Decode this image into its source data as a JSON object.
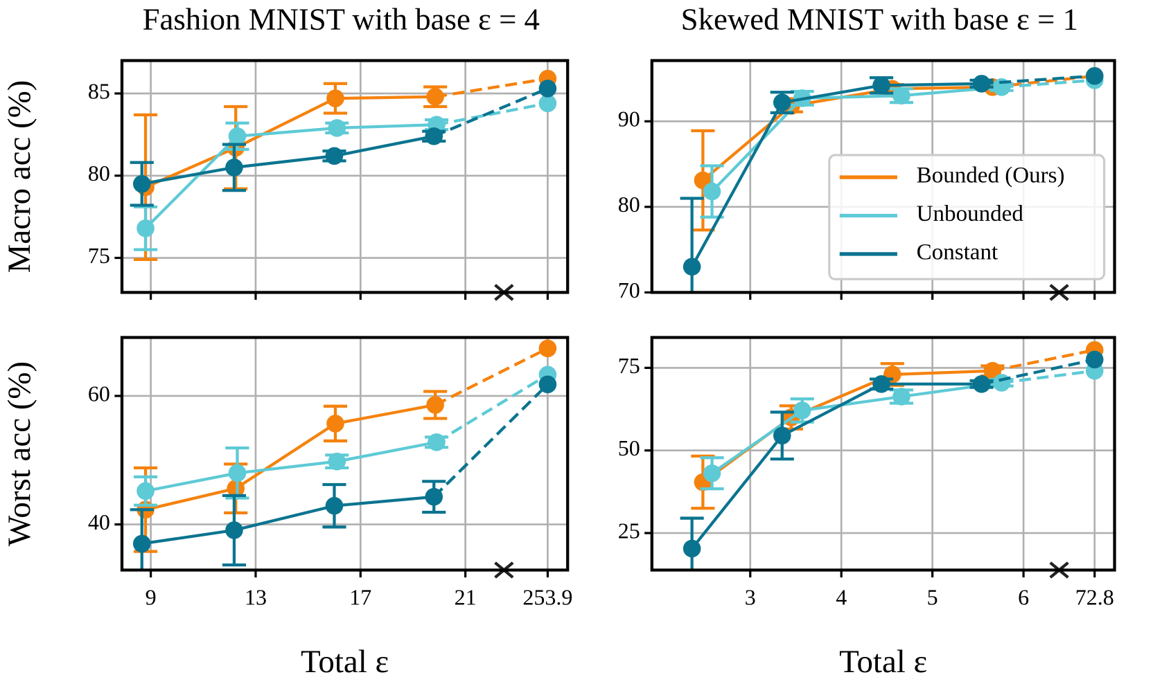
{
  "chart_data": [
    {
      "type": "line",
      "title": "Fashion MNIST with base ε = 4",
      "ylabel": "Macro acc (%)",
      "xlim": [
        7.9,
        24.9
      ],
      "xticks": [
        9,
        13,
        17,
        21,
        253.9
      ],
      "xtick_labels": false,
      "x_break": 22.5,
      "ylim": [
        72.9,
        87.0
      ],
      "yticks": [
        75,
        80,
        85
      ],
      "grid": true,
      "series": [
        {
          "color": "#f5820d",
          "x": [
            8.8,
            12.24,
            16.04,
            19.85,
            253.9
          ],
          "values": [
            79.3,
            81.7,
            84.7,
            84.8,
            85.9
          ],
          "errors": [
            4.4,
            2.5,
            0.9,
            0.6,
            null
          ]
        },
        {
          "color": "#5ecad6",
          "x": [
            8.8,
            12.3,
            16.1,
            19.9,
            253.9
          ],
          "values": [
            76.8,
            82.4,
            82.9,
            83.1,
            84.4
          ],
          "errors": [
            1.3,
            0.8,
            0.3,
            0.3,
            null
          ]
        },
        {
          "color": "#0a7490",
          "x": [
            8.66,
            12.18,
            16.0,
            19.8,
            253.9
          ],
          "values": [
            79.5,
            80.5,
            81.2,
            82.4,
            85.3
          ],
          "errors": [
            1.3,
            1.4,
            0.3,
            0.3,
            null
          ]
        }
      ]
    },
    {
      "type": "line",
      "title": "Skewed MNIST with base ε = 1",
      "xlim": [
        1.92,
        7.0
      ],
      "xticks": [
        3,
        4,
        5,
        6,
        72.8
      ],
      "xtick_labels": false,
      "x_break": 6.4,
      "ylim": [
        70,
        97.1
      ],
      "yticks": [
        70,
        80,
        90
      ],
      "grid": true,
      "legend": "center right",
      "series": [
        {
          "name": "Bounded (Ours)",
          "color": "#f5820d",
          "x": [
            2.48,
            3.45,
            4.56,
            5.66,
            72.8
          ],
          "values": [
            83.1,
            91.8,
            93.8,
            94.0,
            95.3
          ],
          "errors": [
            5.8,
            0.7,
            0.5,
            0.4,
            null
          ]
        },
        {
          "name": "Unbounded",
          "color": "#5ecad6",
          "x": [
            2.58,
            3.57,
            4.66,
            5.76,
            72.8
          ],
          "values": [
            81.8,
            92.7,
            93.0,
            94.0,
            94.8
          ],
          "errors": [
            3.0,
            0.8,
            0.8,
            0.4,
            null
          ]
        },
        {
          "name": "Constant",
          "color": "#0a7490",
          "x": [
            2.36,
            3.35,
            4.44,
            5.54,
            72.8
          ],
          "values": [
            73.0,
            92.2,
            94.2,
            94.4,
            95.3
          ],
          "errors": [
            8.0,
            1.2,
            0.9,
            0.4,
            null
          ]
        }
      ]
    },
    {
      "type": "line",
      "ylabel": "Worst acc (%)",
      "xlabel": "Total ε",
      "xlim": [
        7.9,
        24.9
      ],
      "xticks": [
        9,
        13,
        17,
        21,
        253.9
      ],
      "xtick_labels": true,
      "x_break": 22.5,
      "ylim": [
        32.9,
        69.1
      ],
      "yticks": [
        40,
        60
      ],
      "grid": true,
      "series": [
        {
          "color": "#f5820d",
          "x": [
            8.8,
            12.24,
            16.04,
            19.85,
            253.9
          ],
          "values": [
            42.3,
            45.6,
            55.7,
            58.6,
            67.4
          ],
          "errors": [
            6.5,
            3.8,
            2.7,
            2.1,
            null
          ]
        },
        {
          "color": "#5ecad6",
          "x": [
            8.8,
            12.3,
            16.1,
            19.9,
            253.9
          ],
          "values": [
            45.2,
            48.0,
            49.8,
            52.8,
            63.3
          ],
          "errors": [
            2.2,
            3.9,
            1.0,
            0.8,
            null
          ]
        },
        {
          "color": "#0a7490",
          "x": [
            8.66,
            12.18,
            16.0,
            19.8,
            253.9
          ],
          "values": [
            37.0,
            39.1,
            42.9,
            44.3,
            61.8
          ],
          "errors": [
            5.3,
            5.4,
            3.3,
            2.4,
            null
          ]
        }
      ]
    },
    {
      "type": "line",
      "xlabel": "Total ε",
      "xlim": [
        1.92,
        7.0
      ],
      "xticks": [
        3,
        4,
        5,
        6,
        72.8
      ],
      "xtick_labels": true,
      "x_break": 6.4,
      "ylim": [
        13.8,
        84.2
      ],
      "yticks": [
        25,
        50,
        75
      ],
      "grid": true,
      "series": [
        {
          "color": "#f5820d",
          "x": [
            2.48,
            3.45,
            4.56,
            5.66,
            72.8
          ],
          "values": [
            40.4,
            60.0,
            73.0,
            74.1,
            80.4
          ],
          "errors": [
            7.9,
            3.5,
            3.3,
            1.5,
            null
          ]
        },
        {
          "color": "#5ecad6",
          "x": [
            2.58,
            3.57,
            4.66,
            5.76,
            72.8
          ],
          "values": [
            43.1,
            62.1,
            66.3,
            70.5,
            74.1
          ],
          "errors": [
            4.7,
            3.5,
            2.0,
            1.0,
            null
          ]
        },
        {
          "color": "#0a7490",
          "x": [
            2.36,
            3.35,
            4.44,
            5.54,
            72.8
          ],
          "values": [
            20.3,
            54.5,
            70.1,
            70.1,
            77.5
          ],
          "errors": [
            9.2,
            7.1,
            1.5,
            1.0,
            null
          ]
        }
      ]
    }
  ]
}
